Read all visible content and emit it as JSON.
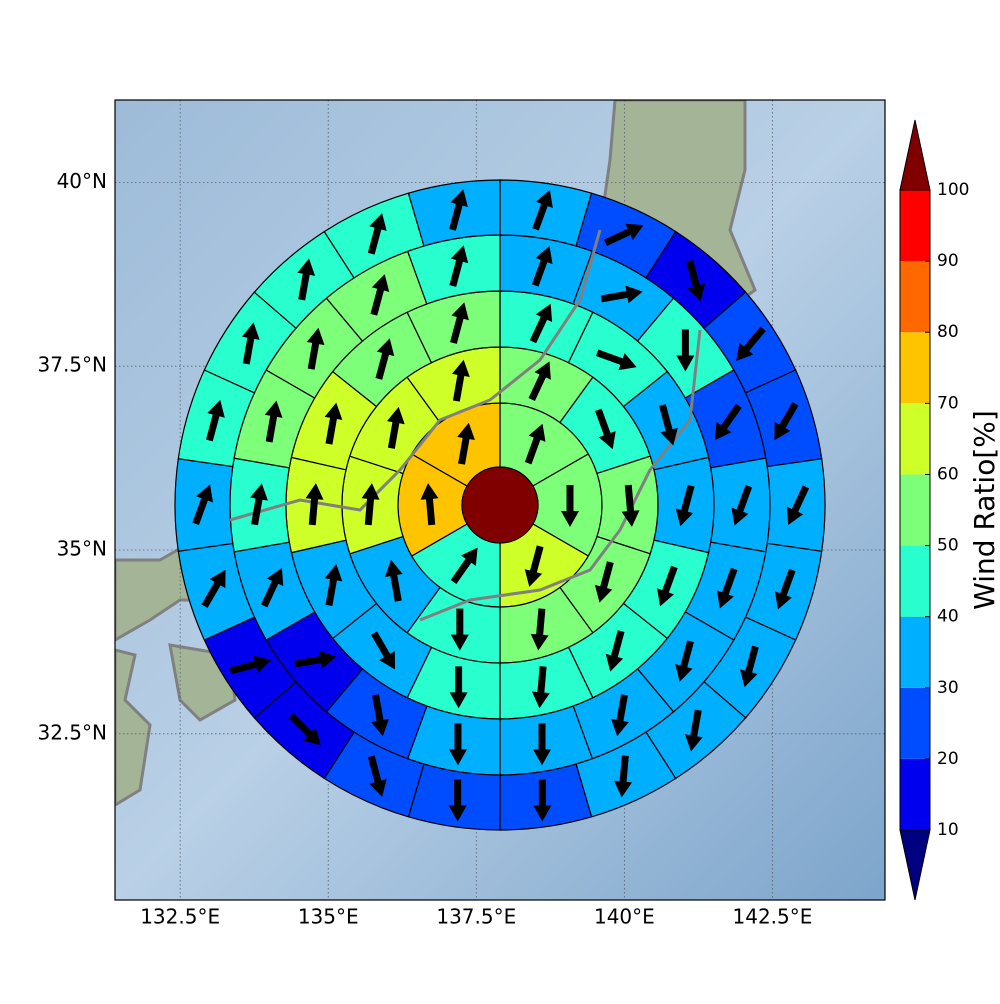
{
  "chart_data": {
    "type": "polar-sectors",
    "xlim": [
      131.4,
      144.4
    ],
    "ylim": [
      30.24,
      41.12
    ],
    "xticks": [
      {
        "value": 132.5,
        "label": "132.5°E"
      },
      {
        "value": 135,
        "label": "135°E"
      },
      {
        "value": 137.5,
        "label": "137.5°E"
      },
      {
        "value": 140,
        "label": "140°E"
      },
      {
        "value": 142.5,
        "label": "142.5°E"
      }
    ],
    "yticks": [
      {
        "value": 32.5,
        "label": "32.5°N"
      },
      {
        "value": 35,
        "label": "35°N"
      },
      {
        "value": 37.5,
        "label": "37.5°N"
      },
      {
        "value": 40,
        "label": "40°N"
      }
    ],
    "grid": true,
    "center_value": 100,
    "rings": [
      {
        "values": [
          55,
          55,
          65,
          45,
          75,
          75
        ],
        "directions": [
          20,
          180,
          195,
          35,
          355,
          10
        ]
      },
      {
        "values": [
          55,
          45,
          55,
          55,
          55,
          45,
          35,
          65,
          65,
          65
        ],
        "directions": [
          25,
          160,
          175,
          195,
          185,
          180,
          350,
          5,
          10,
          10
        ]
      },
      {
        "values": [
          45,
          45,
          35,
          35,
          45,
          45,
          45,
          45,
          35,
          35,
          65,
          65,
          55,
          55
        ],
        "directions": [
          25,
          110,
          165,
          195,
          200,
          195,
          185,
          180,
          150,
          10,
          5,
          10,
          15,
          15
        ]
      },
      {
        "values": [
          35,
          35,
          45,
          25,
          35,
          35,
          35,
          35,
          35,
          35,
          25,
          15,
          35,
          45,
          55,
          55,
          55,
          45
        ],
        "directions": [
          20,
          80,
          180,
          215,
          200,
          200,
          195,
          190,
          180,
          180,
          170,
          80,
          25,
          10,
          10,
          10,
          15,
          15
        ]
      },
      {
        "values": [
          35,
          25,
          15,
          25,
          25,
          35,
          35,
          35,
          35,
          35,
          25,
          25,
          25,
          15,
          15,
          35,
          35,
          45,
          45,
          45,
          45,
          35
        ],
        "directions": [
          20,
          65,
          165,
          220,
          210,
          205,
          200,
          195,
          190,
          185,
          180,
          180,
          165,
          135,
          75,
          30,
          20,
          15,
          10,
          10,
          15,
          15
        ]
      }
    ],
    "colorbar": {
      "label": "Wind Ratio[%]",
      "levels": [
        10,
        20,
        30,
        40,
        50,
        60,
        70,
        80,
        90,
        100
      ],
      "colors": [
        "#0000ee",
        "#004cff",
        "#00b0ff",
        "#29ffce",
        "#7dff7a",
        "#ceff29",
        "#ffc400",
        "#ff6800",
        "#ff0000"
      ],
      "under_color": "#000080",
      "over_color": "#800000"
    }
  }
}
